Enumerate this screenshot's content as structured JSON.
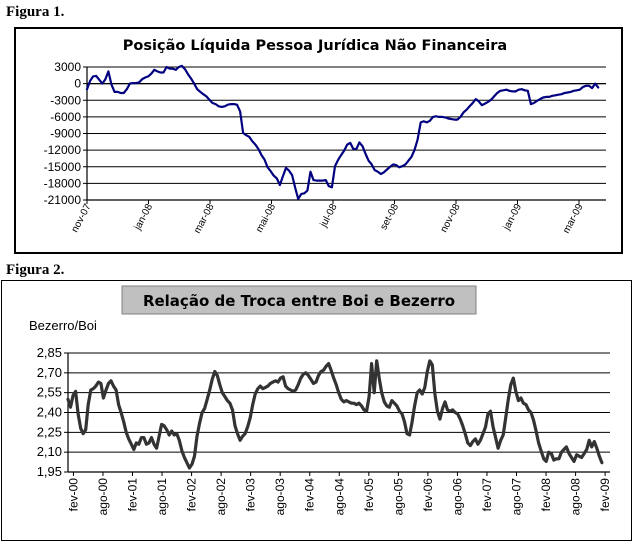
{
  "figures": {
    "fig1_label": "Figura 1.",
    "fig2_label": "Figura 2."
  },
  "chart_data": [
    {
      "type": "line",
      "title": "Posição Líquida Pessoa Jurídica Não Financeira",
      "xlabel": "",
      "ylabel": "",
      "ylim": [
        -21000,
        3000
      ],
      "yticks": [
        3000,
        0,
        -3000,
        -6000,
        -9000,
        -12000,
        -15000,
        -18000,
        -21000
      ],
      "ytick_labels": [
        "3000",
        "0",
        "-3000",
        "-6000",
        "-9000",
        "-12000",
        "-15000",
        "-18000",
        "-21000"
      ],
      "xtick_labels": [
        "nov-07",
        "jan-08",
        "mar-08",
        "mai-08",
        "jul-08",
        "set-08",
        "nov-08",
        "jan-09",
        "mar-09"
      ],
      "grid": true,
      "color": "#000080",
      "series": [
        {
          "values": [
            -1000,
            500,
            1300,
            1400,
            700,
            0,
            800,
            2200,
            -200,
            -1500,
            -1500,
            -1700,
            -1700,
            -1000,
            0,
            100,
            100,
            200,
            800,
            1100,
            1300,
            1800,
            2500,
            2200,
            2000,
            2000,
            3000,
            2700,
            2700,
            2500,
            3000,
            3200,
            2600,
            1700,
            900,
            0,
            -1000,
            -1500,
            -1900,
            -2300,
            -2900,
            -3500,
            -3700,
            -4100,
            -4200,
            -4100,
            -3800,
            -3700,
            -3700,
            -3800,
            -5000,
            -8900,
            -9300,
            -9600,
            -10400,
            -11000,
            -11800,
            -12900,
            -13700,
            -15100,
            -15800,
            -16600,
            -17100,
            -18300,
            -16700,
            -15200,
            -15700,
            -16500,
            -18800,
            -20800,
            -19900,
            -19800,
            -19300,
            -15900,
            -17400,
            -17500,
            -17500,
            -17500,
            -17400,
            -18500,
            -18700,
            -14900,
            -13800,
            -12900,
            -12100,
            -11000,
            -10700,
            -11800,
            -11800,
            -10600,
            -11300,
            -12700,
            -13900,
            -14600,
            -15600,
            -15900,
            -16300,
            -16000,
            -15500,
            -15000,
            -14600,
            -14700,
            -15100,
            -14900,
            -14600,
            -13900,
            -13200,
            -12000,
            -10100,
            -7000,
            -6800,
            -7000,
            -6700,
            -6000,
            -5900,
            -6000,
            -6000,
            -6100,
            -6300,
            -6400,
            -6500,
            -6500,
            -6000,
            -5200,
            -4700,
            -4100,
            -3500,
            -2800,
            -3200,
            -3900,
            -3600,
            -3300,
            -2900,
            -2300,
            -1700,
            -1300,
            -1200,
            -1100,
            -1300,
            -1400,
            -1400,
            -1100,
            -1000,
            -1200,
            -1300,
            -3700,
            -3500,
            -3100,
            -2800,
            -2500,
            -2400,
            -2400,
            -2200,
            -2100,
            -2000,
            -1900,
            -1700,
            -1600,
            -1500,
            -1300,
            -1200,
            -1100,
            -600,
            -400,
            -400,
            -800,
            0,
            -700
          ]
        }
      ]
    },
    {
      "type": "line",
      "title": "Relação de Troca entre Boi e Bezerro",
      "xlabel": "",
      "ylabel": "Bezerro/Boi",
      "ylim": [
        1.95,
        2.85
      ],
      "yticks": [
        2.85,
        2.7,
        2.55,
        2.4,
        2.25,
        2.1,
        1.95
      ],
      "ytick_labels": [
        "2,85",
        "2,70",
        "2,55",
        "2,40",
        "2,25",
        "2,10",
        "1,95"
      ],
      "xtick_labels": [
        "fev-00",
        "ago-00",
        "fev-01",
        "ago-01",
        "fev-02",
        "ago-02",
        "fev-03",
        "ago-03",
        "fev-04",
        "ago-04",
        "fev-05",
        "ago-05",
        "fev-06",
        "ago-06",
        "fev-07",
        "ago-07",
        "fev-08",
        "ago-08",
        "fev-09"
      ],
      "grid": true,
      "color": "#333333",
      "series": [
        {
          "values": [
            2.5,
            2.44,
            2.53,
            2.56,
            2.39,
            2.28,
            2.24,
            2.27,
            2.46,
            2.57,
            2.58,
            2.6,
            2.63,
            2.62,
            2.51,
            2.57,
            2.62,
            2.64,
            2.6,
            2.57,
            2.46,
            2.4,
            2.33,
            2.25,
            2.2,
            2.16,
            2.12,
            2.17,
            2.16,
            2.21,
            2.21,
            2.16,
            2.17,
            2.21,
            2.16,
            2.13,
            2.22,
            2.31,
            2.3,
            2.27,
            2.23,
            2.26,
            2.23,
            2.24,
            2.19,
            2.11,
            2.06,
            2.02,
            1.98,
            2.01,
            2.07,
            2.22,
            2.32,
            2.4,
            2.43,
            2.5,
            2.57,
            2.65,
            2.71,
            2.68,
            2.61,
            2.55,
            2.52,
            2.49,
            2.47,
            2.42,
            2.3,
            2.24,
            2.19,
            2.22,
            2.24,
            2.29,
            2.36,
            2.46,
            2.54,
            2.58,
            2.6,
            2.58,
            2.59,
            2.6,
            2.62,
            2.63,
            2.64,
            2.63,
            2.66,
            2.67,
            2.6,
            2.58,
            2.57,
            2.56,
            2.57,
            2.61,
            2.66,
            2.69,
            2.7,
            2.68,
            2.65,
            2.62,
            2.63,
            2.68,
            2.71,
            2.72,
            2.75,
            2.77,
            2.72,
            2.66,
            2.61,
            2.55,
            2.5,
            2.48,
            2.49,
            2.48,
            2.47,
            2.47,
            2.46,
            2.47,
            2.45,
            2.42,
            2.41,
            2.52,
            2.77,
            2.55,
            2.79,
            2.66,
            2.55,
            2.48,
            2.45,
            2.44,
            2.49,
            2.47,
            2.45,
            2.41,
            2.39,
            2.33,
            2.24,
            2.23,
            2.33,
            2.45,
            2.55,
            2.57,
            2.54,
            2.59,
            2.71,
            2.79,
            2.76,
            2.54,
            2.41,
            2.35,
            2.43,
            2.48,
            2.42,
            2.41,
            2.42,
            2.4,
            2.39,
            2.35,
            2.3,
            2.24,
            2.17,
            2.15,
            2.18,
            2.2,
            2.16,
            2.19,
            2.24,
            2.29,
            2.39,
            2.41,
            2.29,
            2.21,
            2.13,
            2.19,
            2.23,
            2.36,
            2.5,
            2.61,
            2.66,
            2.56,
            2.49,
            2.51,
            2.47,
            2.46,
            2.42,
            2.4,
            2.34,
            2.26,
            2.17,
            2.11,
            2.05,
            2.03,
            2.1,
            2.09,
            2.04,
            2.05,
            2.05,
            2.1,
            2.12,
            2.14,
            2.09,
            2.06,
            2.03,
            2.08,
            2.07,
            2.06,
            2.09,
            2.12,
            2.19,
            2.14,
            2.18,
            2.13,
            2.07,
            2.02
          ]
        }
      ]
    }
  ]
}
